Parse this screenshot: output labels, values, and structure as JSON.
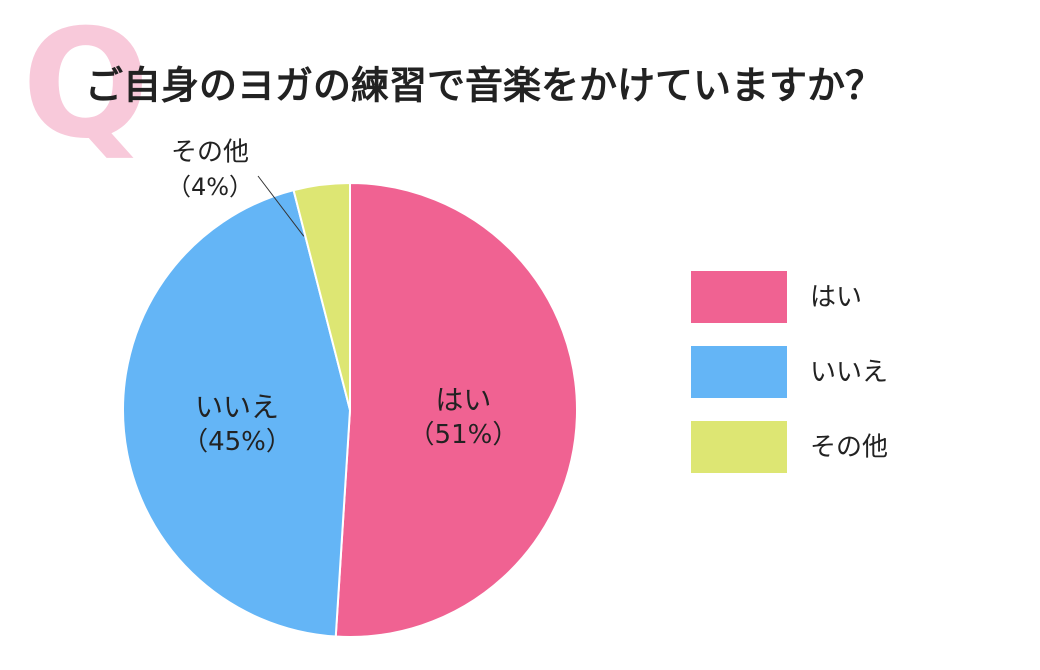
{
  "chart_data": {
    "type": "pie",
    "title_mark": "Q",
    "title": "ご自身のヨガの練習で音楽をかけていますか？",
    "categories": [
      "はい",
      "いいえ",
      "その他"
    ],
    "values": [
      51,
      45,
      4
    ],
    "value_labels": [
      "（51%）",
      "（45%）",
      "（4%）"
    ],
    "colors": [
      "#f06292",
      "#64b5f6",
      "#dde673"
    ],
    "legend": "right"
  }
}
